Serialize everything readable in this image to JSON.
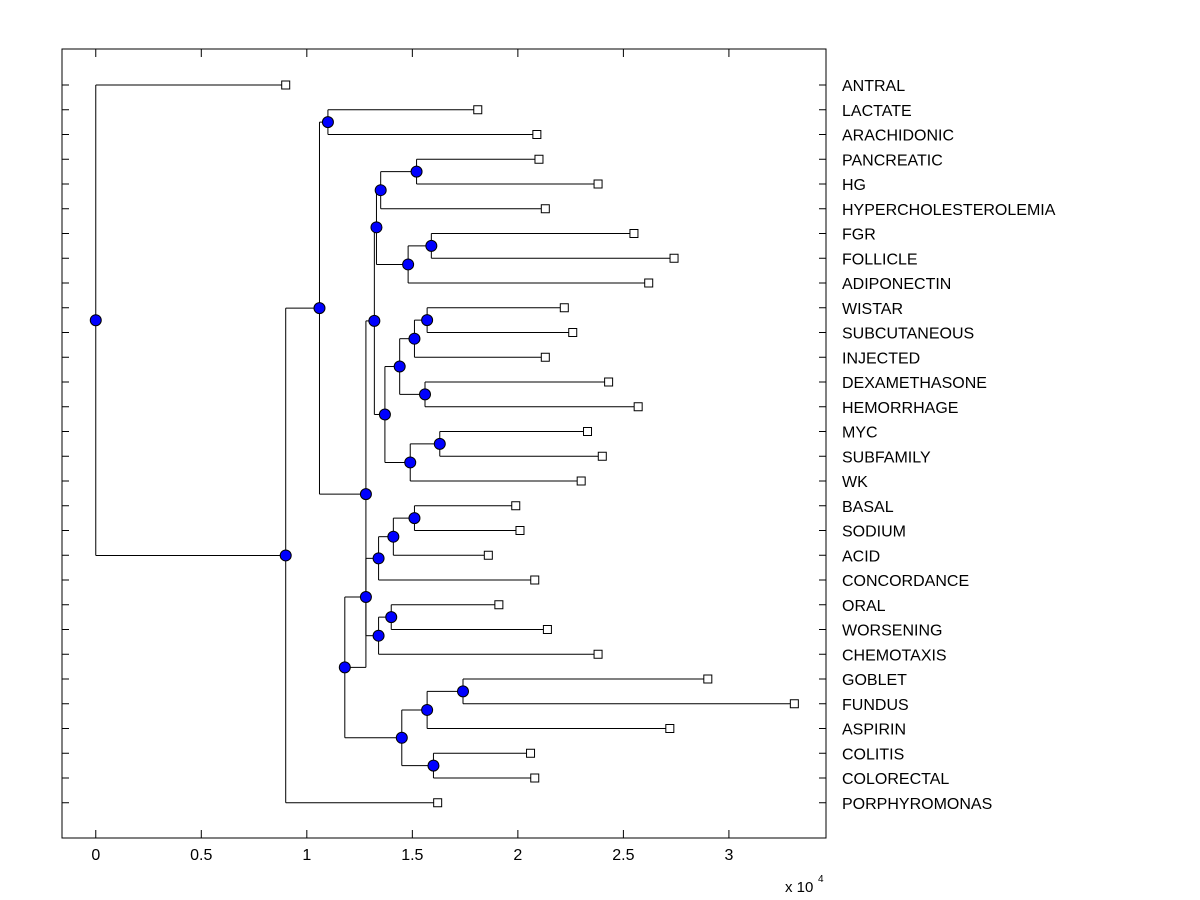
{
  "chart_data": {
    "type": "dendrogram",
    "orientation": "horizontal",
    "xlabel_multiplier": "x 10",
    "xlabel_exponent": "4",
    "xlim": [
      -0.16,
      3.46
    ],
    "x_ticks": [
      0,
      0.5,
      1,
      1.5,
      2,
      2.5,
      3
    ],
    "x_tick_labels": [
      "0",
      "0.5",
      "1",
      "1.5",
      "2",
      "2.5",
      "3"
    ],
    "colors": {
      "node_fill": "#0000ff",
      "line": "#000000",
      "leaf_fill": "#ffffff"
    },
    "leaves": [
      {
        "label": "ANTRAL",
        "value": 0.9
      },
      {
        "label": "LACTATE",
        "value": 1.81
      },
      {
        "label": "ARACHIDONIC",
        "value": 2.09
      },
      {
        "label": "PANCREATIC",
        "value": 2.1
      },
      {
        "label": "HG",
        "value": 2.38
      },
      {
        "label": "HYPERCHOLESTEROLEMIA",
        "value": 2.13
      },
      {
        "label": "FGR",
        "value": 2.55
      },
      {
        "label": "FOLLICLE",
        "value": 2.74
      },
      {
        "label": "ADIPONECTIN",
        "value": 2.62
      },
      {
        "label": "WISTAR",
        "value": 2.22
      },
      {
        "label": "SUBCUTANEOUS",
        "value": 2.26
      },
      {
        "label": "INJECTED",
        "value": 2.13
      },
      {
        "label": "DEXAMETHASONE",
        "value": 2.43
      },
      {
        "label": "HEMORRHAGE",
        "value": 2.57
      },
      {
        "label": "MYC",
        "value": 2.33
      },
      {
        "label": "SUBFAMILY",
        "value": 2.4
      },
      {
        "label": "WK",
        "value": 2.3
      },
      {
        "label": "BASAL",
        "value": 1.99
      },
      {
        "label": "SODIUM",
        "value": 2.01
      },
      {
        "label": "ACID",
        "value": 1.86
      },
      {
        "label": "CONCORDANCE",
        "value": 2.08
      },
      {
        "label": "ORAL",
        "value": 1.91
      },
      {
        "label": "WORSENING",
        "value": 2.14
      },
      {
        "label": "CHEMOTAXIS",
        "value": 2.38
      },
      {
        "label": "GOBLET",
        "value": 2.9
      },
      {
        "label": "FUNDUS",
        "value": 3.31
      },
      {
        "label": "ASPIRIN",
        "value": 2.72
      },
      {
        "label": "COLITIS",
        "value": 2.06
      },
      {
        "label": "COLORECTAL",
        "value": 2.08
      },
      {
        "label": "PORPHYROMONAS",
        "value": 1.62
      }
    ],
    "tree": {
      "v": 0,
      "c": [
        {
          "leaf": 0
        },
        {
          "v": 0.9,
          "c": [
            {
              "v": 1.06,
              "c": [
                {
                  "v": 1.1,
                  "c": [
                    {
                      "leaf": 1
                    },
                    {
                      "leaf": 2
                    }
                  ]
                },
                {
                  "v": 1.28,
                  "c": [
                    {
                      "v": 1.32,
                      "c": [
                        {
                          "v": 1.33,
                          "c": [
                            {
                              "v": 1.35,
                              "c": [
                                {
                                  "v": 1.52,
                                  "c": [
                                    {
                                      "leaf": 3
                                    },
                                    {
                                      "leaf": 4
                                    }
                                  ]
                                },
                                {
                                  "leaf": 5
                                }
                              ]
                            },
                            {
                              "v": 1.48,
                              "c": [
                                {
                                  "v": 1.59,
                                  "c": [
                                    {
                                      "leaf": 6
                                    },
                                    {
                                      "leaf": 7
                                    }
                                  ]
                                },
                                {
                                  "leaf": 8
                                }
                              ]
                            }
                          ]
                        },
                        {
                          "v": 1.37,
                          "c": [
                            {
                              "v": 1.44,
                              "c": [
                                {
                                  "v": 1.51,
                                  "c": [
                                    {
                                      "v": 1.57,
                                      "c": [
                                        {
                                          "leaf": 9
                                        },
                                        {
                                          "leaf": 10
                                        }
                                      ]
                                    },
                                    {
                                      "leaf": 11
                                    }
                                  ]
                                },
                                {
                                  "v": 1.56,
                                  "c": [
                                    {
                                      "leaf": 12
                                    },
                                    {
                                      "leaf": 13
                                    }
                                  ]
                                }
                              ]
                            },
                            {
                              "v": 1.49,
                              "c": [
                                {
                                  "v": 1.63,
                                  "c": [
                                    {
                                      "leaf": 14
                                    },
                                    {
                                      "leaf": 15
                                    }
                                  ]
                                },
                                {
                                  "leaf": 16
                                }
                              ]
                            }
                          ]
                        }
                      ]
                    },
                    {
                      "v": 1.18,
                      "c": [
                        {
                          "v": 1.28,
                          "c": [
                            {
                              "v": 1.34,
                              "c": [
                                {
                                  "v": 1.41,
                                  "c": [
                                    {
                                      "v": 1.51,
                                      "c": [
                                        {
                                          "leaf": 17
                                        },
                                        {
                                          "leaf": 18
                                        }
                                      ]
                                    },
                                    {
                                      "leaf": 19
                                    }
                                  ]
                                },
                                {
                                  "leaf": 20
                                }
                              ]
                            },
                            {
                              "v": 1.34,
                              "c": [
                                {
                                  "v": 1.4,
                                  "c": [
                                    {
                                      "leaf": 21
                                    },
                                    {
                                      "leaf": 22
                                    }
                                  ]
                                },
                                {
                                  "leaf": 23
                                }
                              ]
                            }
                          ]
                        },
                        {
                          "v": 1.45,
                          "c": [
                            {
                              "v": 1.57,
                              "c": [
                                {
                                  "v": 1.74,
                                  "c": [
                                    {
                                      "leaf": 24
                                    },
                                    {
                                      "leaf": 25
                                    }
                                  ]
                                },
                                {
                                  "leaf": 26
                                }
                              ]
                            },
                            {
                              "v": 1.6,
                              "c": [
                                {
                                  "leaf": 27
                                },
                                {
                                  "leaf": 28
                                }
                              ]
                            }
                          ]
                        }
                      ]
                    }
                  ]
                }
              ]
            },
            {
              "leaf": 29
            }
          ]
        }
      ]
    }
  }
}
